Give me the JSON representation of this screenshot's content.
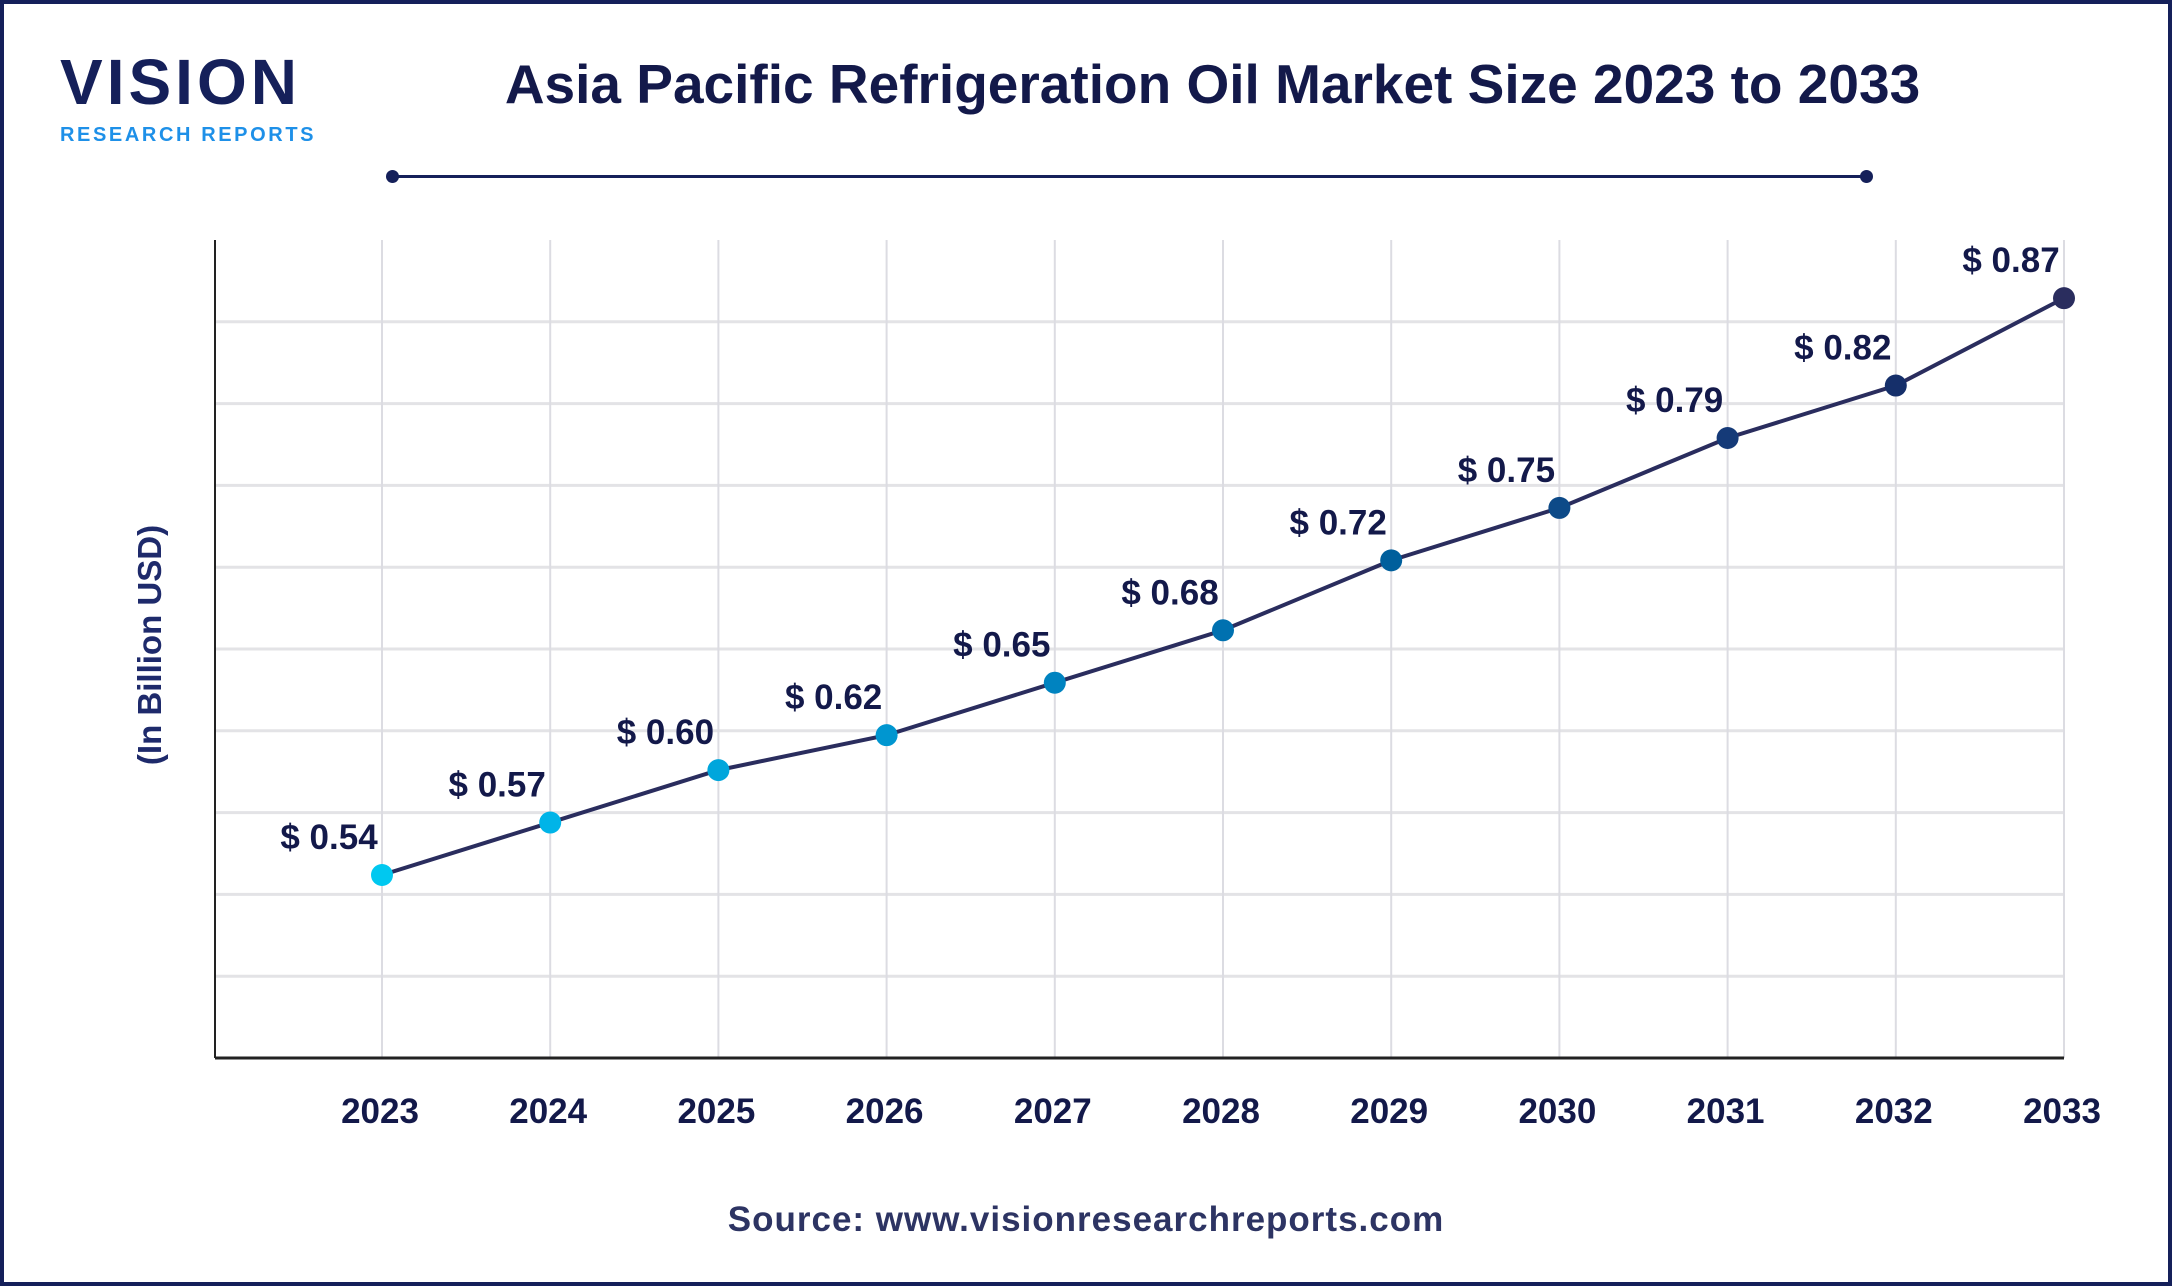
{
  "logo": {
    "main": "VISION",
    "sub": "RESEARCH REPORTS"
  },
  "title": "Asia Pacific Refrigeration Oil Market Size 2023 to 2033",
  "source": "Source: www.visionresearchreports.com",
  "chart_data": {
    "type": "line",
    "title": "Asia Pacific Refrigeration Oil Market Size 2023 to 2033",
    "xlabel": "",
    "ylabel": "(In Billion USD)",
    "categories": [
      "2023",
      "2024",
      "2025",
      "2026",
      "2027",
      "2028",
      "2029",
      "2030",
      "2031",
      "2032",
      "2033"
    ],
    "values": [
      0.54,
      0.57,
      0.6,
      0.62,
      0.65,
      0.68,
      0.72,
      0.75,
      0.79,
      0.82,
      0.87
    ],
    "data_labels": [
      "$ 0.54",
      "$ 0.57",
      "$ 0.60",
      "$ 0.62",
      "$ 0.65",
      "$ 0.68",
      "$ 0.72",
      "$ 0.75",
      "$ 0.79",
      "$ 0.82",
      "$ 0.87"
    ],
    "grid": true,
    "line_color": "#2a2d5e",
    "point_colors": [
      "#00c8f0",
      "#00b4e8",
      "#00a6dc",
      "#0096d0",
      "#0083c0",
      "#0071b0",
      "#005f9c",
      "#0d4a88",
      "#153a78",
      "#152f6a",
      "#2a2d5e"
    ]
  }
}
